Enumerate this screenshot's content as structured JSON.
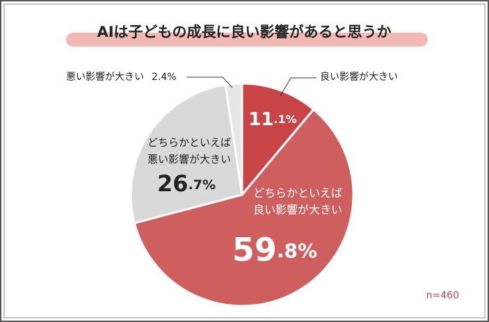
{
  "chart_data": {
    "type": "pie",
    "title": "AIは子どもの成長に良い影響があると思うか",
    "categories": [
      "良い影響が大きい",
      "どちらかといえば\n良い影響が大きい",
      "どちらかといえば\n悪い影響が大きい",
      "悪い影響が大きい"
    ],
    "values": [
      11.1,
      59.8,
      26.7,
      2.4
    ],
    "value_labels": [
      "11.1%",
      "59.8%",
      "26.7%",
      "2.4%"
    ],
    "colors": [
      "#c94446",
      "#cf5f5f",
      "#d9d9d9",
      "#e6e6e6"
    ],
    "annotation": "n=460"
  }
}
